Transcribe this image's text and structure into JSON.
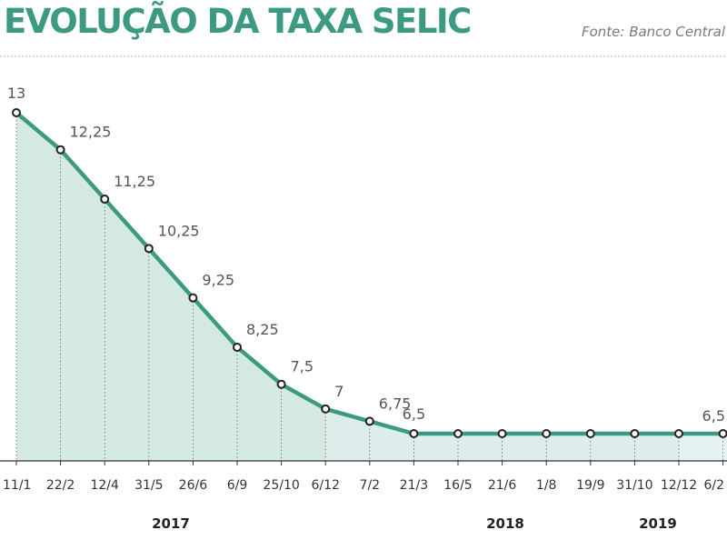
{
  "header": {
    "title": "EVOLUÇÃO DA TAXA SELIC",
    "source": "Fonte: Banco Central"
  },
  "chart_data": {
    "type": "area",
    "title": "EVOLUÇÃO DA TAXA SELIC",
    "categories": [
      "11/1",
      "22/2",
      "12/4",
      "31/5",
      "26/6",
      "6/9",
      "25/10",
      "6/12",
      "7/2",
      "21/3",
      "16/5",
      "21/6",
      "1/8",
      "19/9",
      "31/10",
      "12/12",
      "6/2"
    ],
    "values": [
      13,
      12.25,
      11.25,
      10.25,
      9.25,
      8.25,
      7.5,
      7,
      6.75,
      6.5,
      6.5,
      6.5,
      6.5,
      6.5,
      6.5,
      6.5,
      6.5
    ],
    "value_labels": [
      "13",
      "12,25",
      "11,25",
      "10,25",
      "9,25",
      "8,25",
      "7,5",
      "7",
      "6,75",
      "6,5",
      "",
      "",
      "",
      "",
      "",
      "",
      "6,5"
    ],
    "years": [
      {
        "label": "2017",
        "start_index": 0
      },
      {
        "label": "2018",
        "start_index": 8
      },
      {
        "label": "2019",
        "start_index": 16
      }
    ],
    "ylim": [
      6,
      13.2
    ],
    "grid": "vertical-dotted",
    "colors": {
      "line": "#3d9a82",
      "area_2017": "#d4e9e0",
      "area_2018": "#dcedec",
      "area_2019": "#e6f2f1",
      "marker_fill": "#ffffff",
      "marker_stroke": "#222222"
    }
  }
}
